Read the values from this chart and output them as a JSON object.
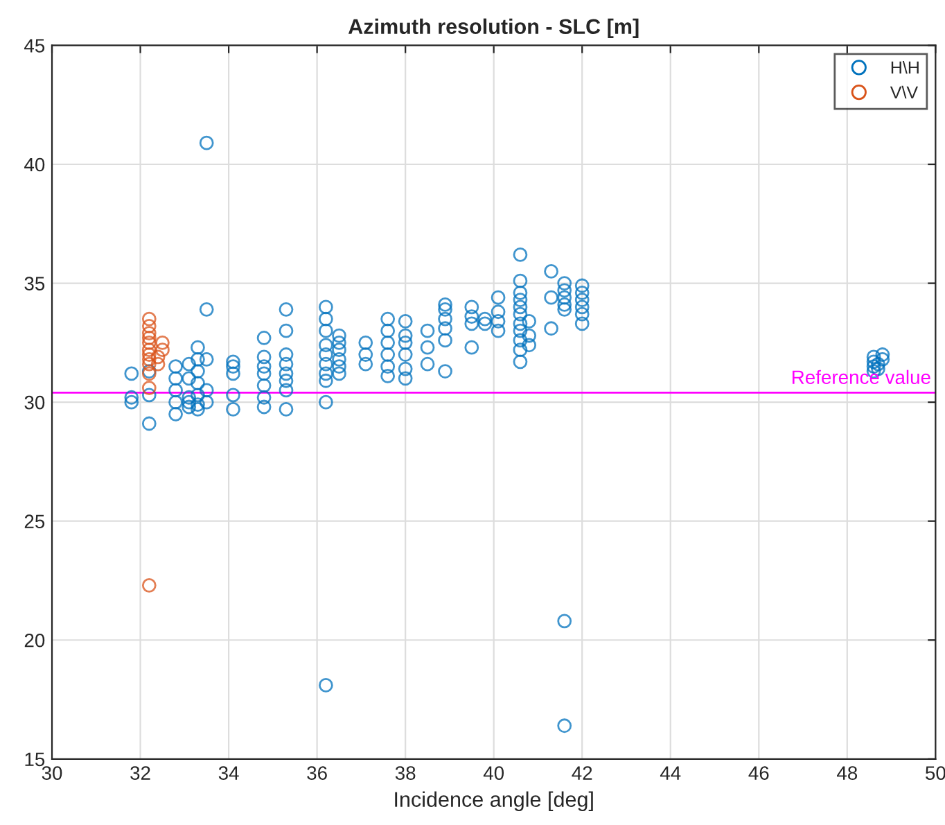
{
  "chart_data": {
    "type": "scatter",
    "title": "Azimuth resolution - SLC [m]",
    "xlabel": "Incidence angle [deg]",
    "xlim": [
      30,
      50
    ],
    "xticks": [
      30,
      32,
      34,
      36,
      38,
      40,
      42,
      44,
      46,
      48,
      50
    ],
    "ylim": [
      15,
      45
    ],
    "yticks": [
      15,
      20,
      25,
      30,
      35,
      40,
      45
    ],
    "grid": true,
    "legend": "top right",
    "marker": "circle",
    "series": [
      {
        "name": "H\\H",
        "color": "#0072bd",
        "x": [
          31.8,
          31.8,
          31.8,
          32.2,
          32.2,
          32.2,
          32.8,
          32.8,
          32.8,
          32.8,
          32.8,
          33.1,
          33.1,
          33.1,
          33.1,
          33.1,
          33.3,
          33.3,
          33.3,
          33.3,
          33.3,
          33.3,
          33.3,
          33.5,
          33.5,
          33.5,
          33.5,
          33.5,
          34.1,
          34.1,
          34.1,
          34.1,
          34.1,
          34.8,
          34.8,
          34.8,
          34.8,
          34.8,
          34.8,
          34.8,
          35.3,
          35.3,
          35.3,
          35.3,
          35.3,
          35.3,
          35.3,
          35.3,
          36.2,
          36.2,
          36.2,
          36.2,
          36.2,
          36.2,
          36.2,
          36.2,
          36.2,
          36.2,
          36.5,
          36.5,
          36.5,
          36.5,
          36.5,
          36.5,
          37.1,
          37.1,
          37.1,
          37.6,
          37.6,
          37.6,
          37.6,
          37.6,
          37.6,
          38.0,
          38.0,
          38.0,
          38.0,
          38.0,
          38.0,
          38.5,
          38.5,
          38.5,
          38.9,
          38.9,
          38.9,
          38.9,
          38.9,
          38.9,
          39.5,
          39.5,
          39.5,
          39.5,
          39.8,
          39.8,
          40.1,
          40.1,
          40.1,
          40.1,
          40.6,
          40.6,
          40.6,
          40.6,
          40.6,
          40.6,
          40.6,
          40.6,
          40.6,
          40.6,
          40.6,
          40.8,
          40.8,
          40.8,
          41.3,
          41.3,
          41.3,
          41.6,
          41.6,
          41.6,
          41.6,
          41.6,
          41.6,
          41.6,
          42.0,
          42.0,
          42.0,
          42.0,
          42.0,
          42.0,
          48.6,
          48.6,
          48.6,
          48.6,
          48.7,
          48.7,
          48.8,
          48.8
        ],
        "values": [
          30.2,
          30.0,
          31.2,
          29.1,
          30.3,
          31.3,
          29.5,
          30.0,
          30.5,
          31.0,
          31.5,
          29.8,
          30.0,
          30.2,
          31.0,
          31.6,
          29.7,
          29.9,
          30.3,
          30.8,
          31.3,
          31.8,
          32.3,
          30.0,
          33.9,
          40.9,
          30.5,
          31.8,
          29.7,
          30.3,
          31.2,
          31.5,
          31.7,
          29.8,
          30.2,
          30.7,
          31.2,
          31.5,
          31.9,
          32.7,
          29.7,
          30.5,
          30.9,
          31.2,
          31.6,
          32.0,
          33.0,
          33.9,
          30.0,
          30.9,
          31.2,
          31.6,
          32.0,
          32.4,
          33.0,
          33.5,
          34.0,
          18.1,
          31.2,
          31.5,
          31.8,
          32.2,
          32.5,
          32.8,
          31.6,
          32.0,
          32.5,
          31.1,
          31.5,
          32.0,
          32.5,
          33.0,
          33.5,
          31.0,
          31.4,
          32.0,
          32.5,
          32.8,
          33.4,
          31.6,
          32.3,
          33.0,
          31.3,
          32.6,
          33.1,
          33.5,
          33.9,
          34.1,
          32.3,
          33.3,
          33.6,
          34.0,
          33.3,
          33.5,
          33.0,
          33.4,
          33.8,
          34.4,
          31.7,
          32.2,
          32.6,
          33.0,
          33.3,
          33.7,
          34.0,
          34.3,
          34.6,
          35.1,
          36.2,
          32.4,
          32.8,
          33.4,
          33.1,
          34.4,
          35.5,
          33.9,
          34.1,
          34.4,
          34.7,
          35.0,
          20.8,
          16.4,
          33.3,
          33.7,
          34.0,
          34.3,
          34.6,
          34.9,
          31.3,
          31.5,
          31.7,
          31.9,
          31.4,
          31.6,
          31.8,
          32.0
        ]
      },
      {
        "name": "V\\V",
        "color": "#d95319",
        "x": [
          32.2,
          32.2,
          32.2,
          32.2,
          32.2,
          32.2,
          32.2,
          32.2,
          32.2,
          32.2,
          32.2,
          32.2,
          32.4,
          32.4,
          32.5,
          32.5
        ],
        "values": [
          22.3,
          30.6,
          31.2,
          31.6,
          31.8,
          32.0,
          32.2,
          32.5,
          32.7,
          32.9,
          33.2,
          33.5,
          31.6,
          31.9,
          32.2,
          32.5
        ]
      }
    ],
    "ref_lines": [
      {
        "axis": "y",
        "value": 30.4,
        "label": "Reference value",
        "color": "#ff00ff"
      }
    ]
  }
}
